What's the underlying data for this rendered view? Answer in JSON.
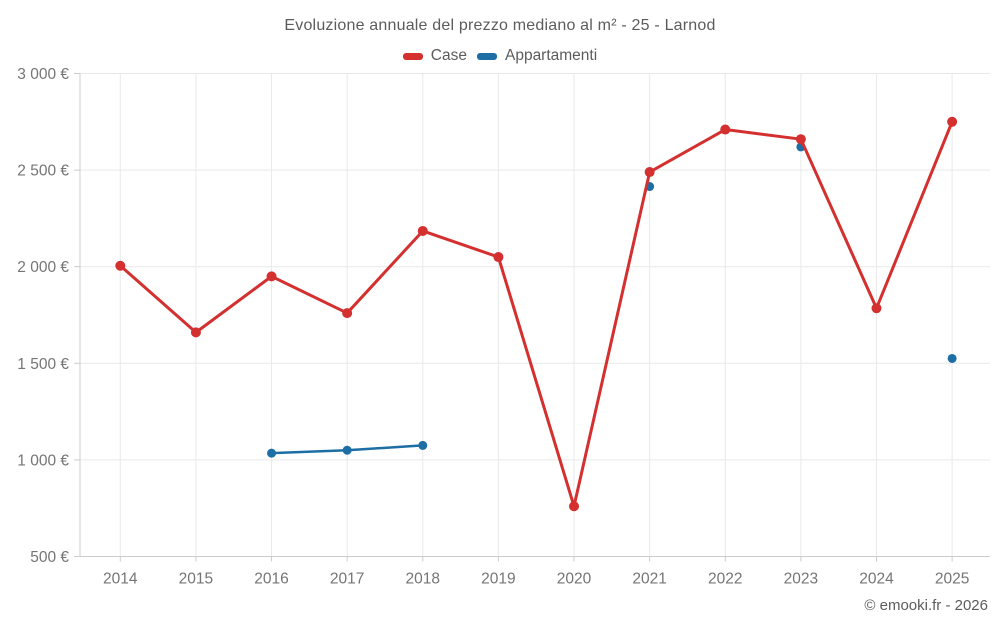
{
  "title": "Evoluzione annuale del prezzo mediano al m² - 25 - Larnod",
  "legend": {
    "items": [
      {
        "label": "Case",
        "color": "#d3302f"
      },
      {
        "label": "Appartamenti",
        "color": "#1c6ea4"
      }
    ]
  },
  "footer": {
    "copyright": "© emooki.fr - 2026"
  },
  "colors": {
    "grid": "#e9e9e9",
    "axis": "#cccccc",
    "tick_text": "#757575",
    "title_text": "#5c5c5c",
    "case_red": "#d3302f",
    "appartamenti_blue": "#1c6ea4"
  },
  "chart_data": {
    "type": "line",
    "title": "Evoluzione annuale del prezzo mediano al m² - 25 - Larnod",
    "x_categories": [
      "2014",
      "2015",
      "2016",
      "2017",
      "2018",
      "2019",
      "2020",
      "2021",
      "2022",
      "2023",
      "2024",
      "2025"
    ],
    "ylim": [
      500,
      3000
    ],
    "yticks": [
      {
        "value": 500,
        "label": "500 €"
      },
      {
        "value": 1000,
        "label": "1 000 €"
      },
      {
        "value": 1500,
        "label": "1 500 €"
      },
      {
        "value": 2000,
        "label": "2 000 €"
      },
      {
        "value": 2500,
        "label": "2 500 €"
      },
      {
        "value": 3000,
        "label": "3 000 €"
      }
    ],
    "grid": true,
    "legend_position": "top",
    "series": [
      {
        "name": "Case",
        "color": "#d3302f",
        "line_width": 3,
        "marker_radius": 5,
        "values": [
          2005,
          1660,
          1950,
          1760,
          2185,
          2050,
          760,
          2490,
          2710,
          2660,
          1785,
          2750
        ]
      },
      {
        "name": "Appartamenti",
        "color": "#1c6ea4",
        "line_width": 2.5,
        "marker_radius": 4.5,
        "values": [
          null,
          null,
          1035,
          1050,
          1075,
          null,
          null,
          2415,
          null,
          2620,
          null,
          1525
        ]
      }
    ]
  }
}
